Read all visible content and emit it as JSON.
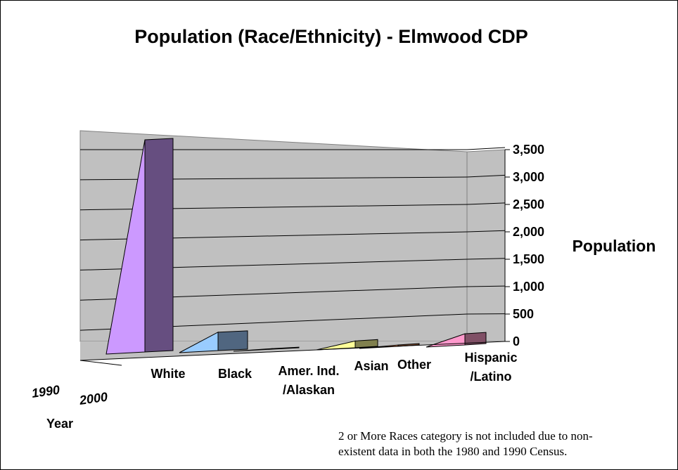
{
  "chart_data": {
    "type": "bar",
    "title": "Population (Race/Ethnicity) - Elmwood CDP",
    "ylabel": "Population",
    "zlabel": "Year",
    "ylim": [
      0,
      3500
    ],
    "yticks": [
      "0",
      "500",
      "1,000",
      "1,500",
      "2,000",
      "2,500",
      "3,000",
      "3,500"
    ],
    "categories": [
      [
        "White"
      ],
      [
        "Black"
      ],
      [
        "Amer. Ind.",
        "/Alaskan"
      ],
      [
        "Asian"
      ],
      [
        "Other"
      ],
      [
        "Hispanic",
        "/Latino"
      ]
    ],
    "series": [
      {
        "name": "1990",
        "values": [
          0,
          0,
          0,
          0,
          0,
          0
        ]
      },
      {
        "name": "2000",
        "values": [
          3670,
          320,
          10,
          120,
          25,
          200
        ]
      }
    ],
    "grid": true,
    "colors_1990": [
      "#cc99ff",
      "#99ccff",
      "#339966",
      "#ffff99",
      "#ff9966",
      "#ff99cc"
    ],
    "colors_2000": [
      "#664e80",
      "#506680",
      "#204d33",
      "#80804e",
      "#804e33",
      "#805066"
    ],
    "note": [
      "2 or More Races category is not included due to non-",
      "existent data in both the 1980 and 1990 Census."
    ]
  }
}
